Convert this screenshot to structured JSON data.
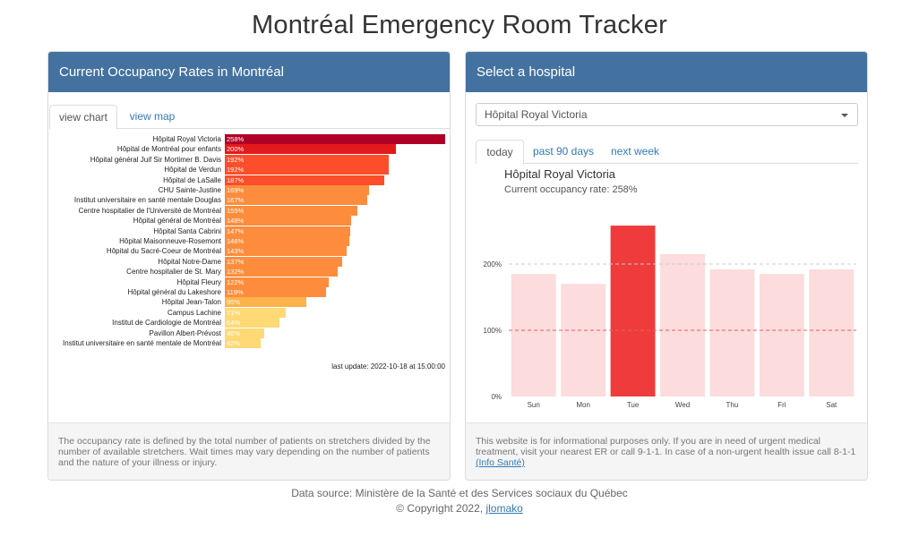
{
  "app": {
    "title": "Montréal Emergency Room Tracker"
  },
  "left_panel": {
    "heading": "Current Occupancy Rates in Montréal",
    "tabs": [
      {
        "label": "view chart",
        "active": true
      },
      {
        "label": "view map",
        "active": false
      }
    ],
    "last_update": "last update: 2022-10-18 at 15:00:00",
    "footnote": "The occupancy rate is defined by the total number of patients on stretchers divided by the number of available stretchers. Wait times may vary depending on the number of patients and the nature of your illness or injury."
  },
  "right_panel": {
    "heading": "Select a hospital",
    "selected_hospital": "Hôpital Royal Victoria",
    "tabs": [
      {
        "label": "today",
        "active": true
      },
      {
        "label": "past 90 days",
        "active": false
      },
      {
        "label": "next week",
        "active": false
      }
    ],
    "hospital_name": "Hôpital Royal Victoria",
    "current_rate_text": "Current occupancy rate: 258%",
    "disclaimer": "This website is for informational purposes only. If you are in need of urgent medical treatment, visit your nearest ER or call 9-1-1. In case of a non-urgent health issue call 8-1-1",
    "info_link": "(Info Santé)"
  },
  "footer": {
    "data_source": "Data source: Ministère de la Santé et des Services sociaux du Québec",
    "copyright": "© Copyright 2022,",
    "author_link": "jlomako"
  },
  "colors": {
    "panel_header": "#4472a0",
    "link": "#337ab7",
    "highlight_bar": "#ef3b3b",
    "faded_bar": "#fcdcdc"
  },
  "chart_data": [
    {
      "type": "bar",
      "orientation": "horizontal",
      "title": "",
      "categories": [
        "Hôpital Royal Victoria",
        "Hôpital de Montréal pour enfants",
        "Hôpital général Juif Sir Mortimer B. Davis",
        "Hôpital de Verdun",
        "Hôpital de LaSalle",
        "CHU Sainte-Justine",
        "Institut universitaire en santé mentale Douglas",
        "Centre hospitalier de l'Université de Montréal",
        "Hôpital général de Montréal",
        "Hôpital Santa Cabrini",
        "Hôpital Maisonneuve-Rosemont",
        "Hôpital du Sacré-Coeur de Montréal",
        "Hôpital Notre-Dame",
        "Centre hospitalier de St. Mary",
        "Hôpital Fleury",
        "Hôpital général du Lakeshore",
        "Hôpital Jean-Talon",
        "Campus Lachine",
        "Institut de Cardiologie de Montréal",
        "Pavillon Albert-Prévost",
        "Institut universitaire en santé mentale de Montréal"
      ],
      "values": [
        258,
        200,
        192,
        192,
        187,
        169,
        167,
        155,
        148,
        147,
        146,
        143,
        137,
        132,
        122,
        119,
        95,
        71,
        64,
        46,
        42
      ],
      "value_labels": [
        "258%",
        "200%",
        "192%",
        "192%",
        "187%",
        "169%",
        "167%",
        "155%",
        "148%",
        "147%",
        "146%",
        "143%",
        "137%",
        "132%",
        "122%",
        "119%",
        "95%",
        "71%",
        "64%",
        "46%",
        "42%"
      ],
      "xlim": [
        0,
        258
      ],
      "grid": false,
      "legend": "none",
      "color_scale": [
        "#b10026",
        "#e31a1c",
        "#fc4e2a",
        "#fd8d3c",
        "#feb24c",
        "#fed976"
      ]
    },
    {
      "type": "bar",
      "title": "",
      "categories": [
        "Sun",
        "Mon",
        "Tue",
        "Wed",
        "Thu",
        "Fri",
        "Sat"
      ],
      "values": [
        185,
        170,
        258,
        215,
        192,
        185,
        192
      ],
      "highlight_category": "Tue",
      "ylim": [
        0,
        300
      ],
      "yticks": [
        0,
        100,
        200
      ],
      "ytick_labels": [
        "0%",
        "100%",
        "200%"
      ],
      "reference_lines": [
        100,
        200
      ],
      "grid": false,
      "legend": "none"
    }
  ]
}
